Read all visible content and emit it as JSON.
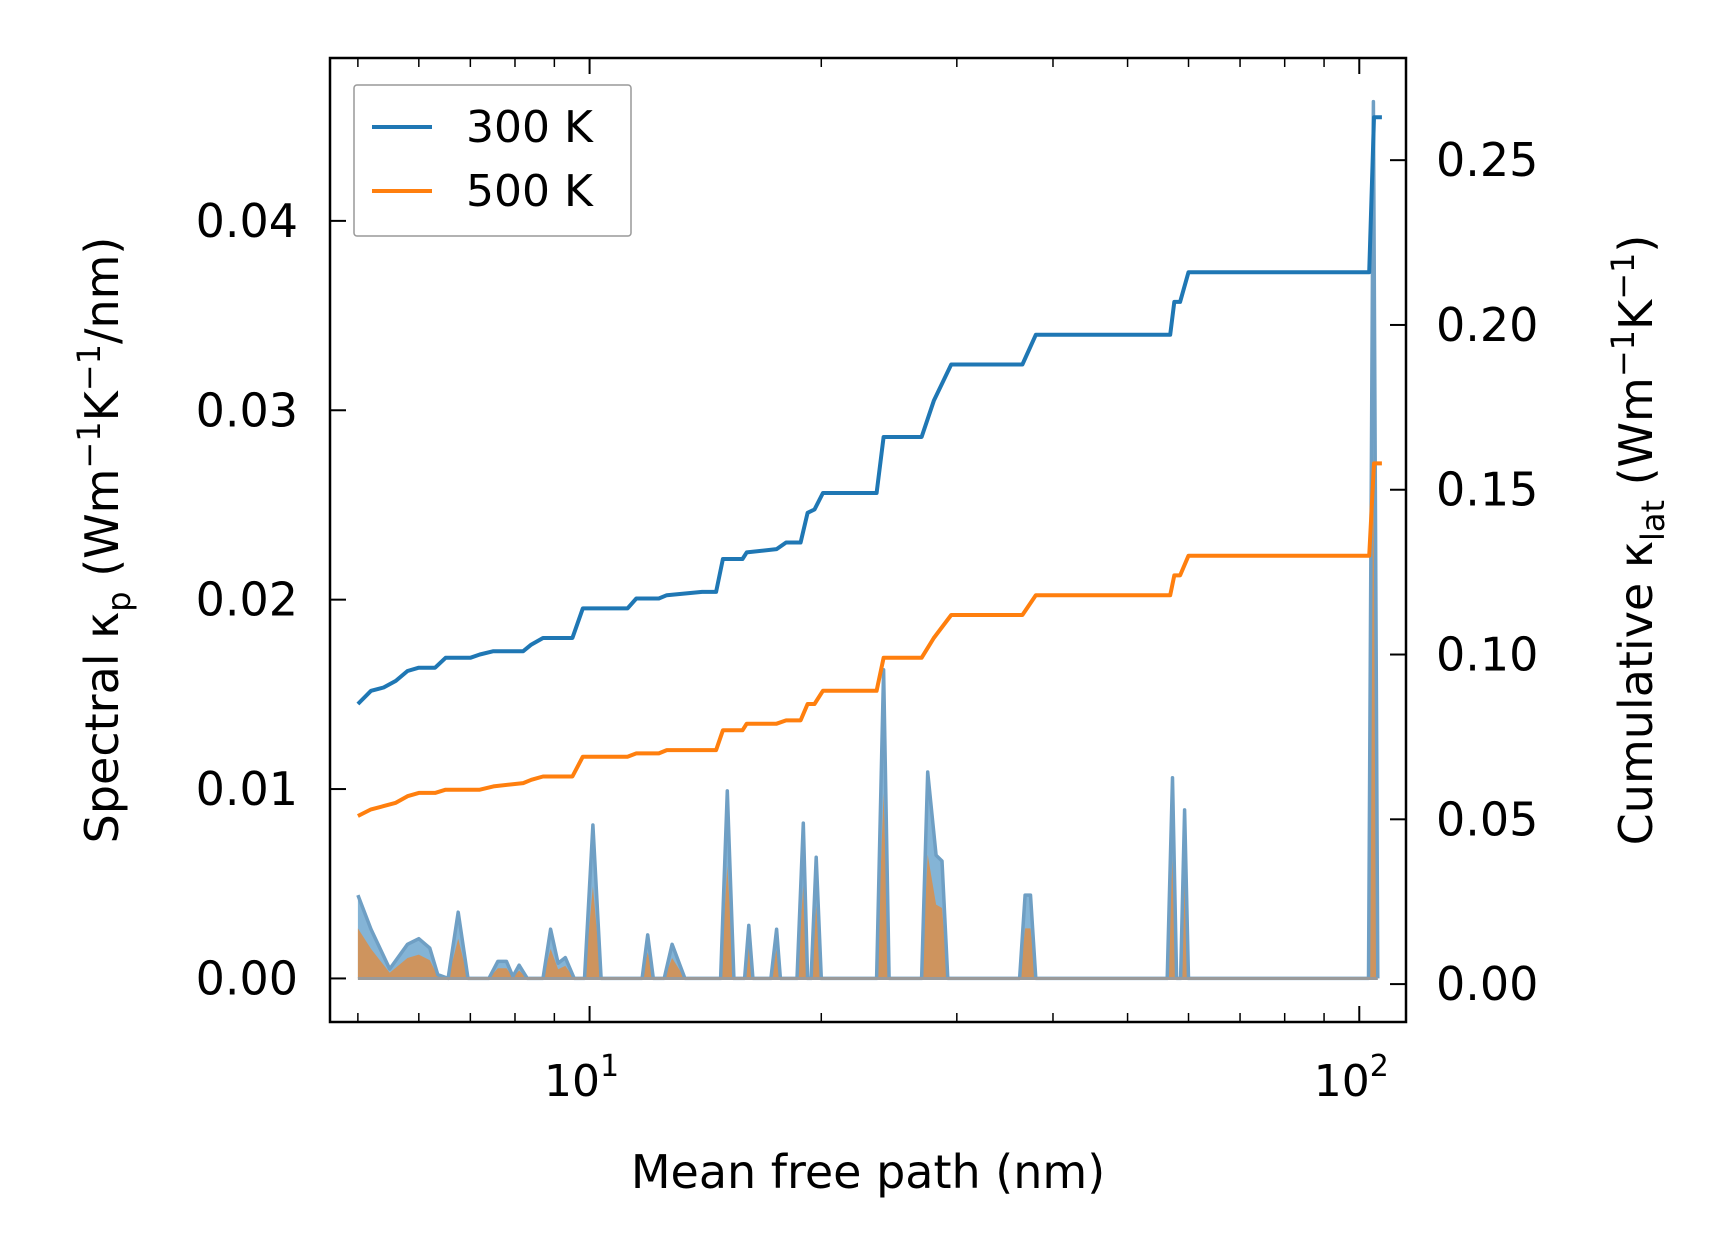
{
  "chart_data": {
    "type": "line+area",
    "xscale": "log",
    "xlabel": "Mean free path (nm)",
    "ylabel_left": {
      "prefix": "Spectral κ",
      "sub": "p",
      "unit_pre": " (Wm",
      "sup1": "−1",
      "mid": "K",
      "sup2": "−1",
      "unit_post": "/nm)"
    },
    "ylabel_right": {
      "prefix": "Cumulative κ",
      "sub": "lat",
      "unit_pre": " (Wm",
      "sup1": "−1",
      "mid": "K",
      "sup2": "−1",
      "unit_post": ")"
    },
    "xlim": [
      4.6,
      115
    ],
    "ylim_left": [
      -0.0023,
      0.0486
    ],
    "ylim_right": [
      -0.0115,
      0.281
    ],
    "xticks": [
      {
        "value": 10,
        "base": "10",
        "exp": "1"
      },
      {
        "value": 100,
        "base": "10",
        "exp": "2"
      }
    ],
    "yticks_left": [
      "0.00",
      "0.01",
      "0.02",
      "0.03",
      "0.04"
    ],
    "yticks_right": [
      "0.00",
      "0.05",
      "0.10",
      "0.15",
      "0.20",
      "0.25"
    ],
    "legend_position": "upper-left",
    "series": [
      {
        "name": "300 K",
        "color": "#1f77b4",
        "cumulative": [
          [
            5.0,
            0.085
          ],
          [
            5.2,
            0.089
          ],
          [
            5.4,
            0.09
          ],
          [
            5.6,
            0.092
          ],
          [
            5.8,
            0.095
          ],
          [
            6.0,
            0.096
          ],
          [
            6.3,
            0.096
          ],
          [
            6.5,
            0.099
          ],
          [
            6.8,
            0.099
          ],
          [
            7.0,
            0.099
          ],
          [
            7.2,
            0.1
          ],
          [
            7.5,
            0.101
          ],
          [
            8.2,
            0.101
          ],
          [
            8.4,
            0.103
          ],
          [
            8.7,
            0.105
          ],
          [
            9.5,
            0.105
          ],
          [
            9.8,
            0.114
          ],
          [
            11.2,
            0.114
          ],
          [
            11.5,
            0.117
          ],
          [
            12.3,
            0.117
          ],
          [
            12.6,
            0.118
          ],
          [
            14.0,
            0.119
          ],
          [
            14.6,
            0.119
          ],
          [
            14.9,
            0.129
          ],
          [
            15.8,
            0.129
          ],
          [
            16.0,
            0.131
          ],
          [
            17.5,
            0.132
          ],
          [
            18.0,
            0.134
          ],
          [
            18.8,
            0.134
          ],
          [
            19.2,
            0.143
          ],
          [
            19.6,
            0.144
          ],
          [
            20.1,
            0.149
          ],
          [
            23.6,
            0.149
          ],
          [
            24.1,
            0.166
          ],
          [
            27.0,
            0.166
          ],
          [
            28.0,
            0.177
          ],
          [
            29.5,
            0.188
          ],
          [
            36.5,
            0.188
          ],
          [
            38.0,
            0.197
          ],
          [
            56.8,
            0.197
          ],
          [
            57.5,
            0.207
          ],
          [
            58.5,
            0.207
          ],
          [
            60.0,
            0.216
          ],
          [
            103.0,
            0.216
          ],
          [
            104.5,
            0.263
          ],
          [
            107.0,
            0.263
          ]
        ],
        "spectral": [
          [
            5.0,
            0.0044
          ],
          [
            5.2,
            0.0026
          ],
          [
            5.5,
            0.0005
          ],
          [
            5.8,
            0.0018
          ],
          [
            6.0,
            0.0021
          ],
          [
            6.2,
            0.0016
          ],
          [
            6.35,
            0.0002
          ],
          [
            6.55,
            0.0
          ],
          [
            6.75,
            0.0035
          ],
          [
            6.95,
            0.0
          ],
          [
            7.4,
            0.0
          ],
          [
            7.6,
            0.0009
          ],
          [
            7.8,
            0.0009
          ],
          [
            7.95,
            0.0001
          ],
          [
            8.1,
            0.0007
          ],
          [
            8.3,
            0.0
          ],
          [
            8.7,
            0.0
          ],
          [
            8.9,
            0.0026
          ],
          [
            9.1,
            0.0008
          ],
          [
            9.3,
            0.0011
          ],
          [
            9.55,
            0.0
          ],
          [
            9.85,
            0.0
          ],
          [
            10.1,
            0.0081
          ],
          [
            10.35,
            0.0
          ],
          [
            11.7,
            0.0
          ],
          [
            11.9,
            0.0023
          ],
          [
            12.1,
            0.0
          ],
          [
            12.5,
            0.0
          ],
          [
            12.8,
            0.0018
          ],
          [
            13.3,
            0.0
          ],
          [
            14.8,
            0.0
          ],
          [
            15.1,
            0.0099
          ],
          [
            15.4,
            0.0
          ],
          [
            15.9,
            0.0
          ],
          [
            16.1,
            0.0028
          ],
          [
            16.3,
            0.0
          ],
          [
            17.2,
            0.0
          ],
          [
            17.5,
            0.0026
          ],
          [
            17.7,
            0.0
          ],
          [
            18.6,
            0.0
          ],
          [
            18.95,
            0.0082
          ],
          [
            19.2,
            0.0
          ],
          [
            19.4,
            0.0
          ],
          [
            19.7,
            0.0064
          ],
          [
            20.0,
            0.0
          ],
          [
            23.6,
            0.0
          ],
          [
            24.1,
            0.0163
          ],
          [
            24.5,
            0.0
          ],
          [
            27.0,
            0.0
          ],
          [
            27.5,
            0.0109
          ],
          [
            28.2,
            0.0065
          ],
          [
            28.7,
            0.0062
          ],
          [
            29.2,
            0.0
          ],
          [
            36.2,
            0.0
          ],
          [
            36.8,
            0.0044
          ],
          [
            37.4,
            0.0044
          ],
          [
            38.0,
            0.0
          ],
          [
            56.3,
            0.0
          ],
          [
            57.2,
            0.0106
          ],
          [
            57.9,
            0.0
          ],
          [
            58.6,
            0.0
          ],
          [
            59.3,
            0.0089
          ],
          [
            60.0,
            0.0
          ],
          [
            102.8,
            0.0
          ],
          [
            104.3,
            0.0463
          ],
          [
            105.7,
            0.0
          ]
        ]
      },
      {
        "name": "500 K",
        "color": "#ff7f0e",
        "cumulative": [
          [
            5.0,
            0.051
          ],
          [
            5.2,
            0.053
          ],
          [
            5.4,
            0.054
          ],
          [
            5.6,
            0.055
          ],
          [
            5.8,
            0.057
          ],
          [
            6.0,
            0.058
          ],
          [
            6.3,
            0.058
          ],
          [
            6.5,
            0.059
          ],
          [
            7.2,
            0.059
          ],
          [
            7.5,
            0.06
          ],
          [
            8.2,
            0.061
          ],
          [
            8.4,
            0.062
          ],
          [
            8.7,
            0.063
          ],
          [
            9.5,
            0.063
          ],
          [
            9.8,
            0.069
          ],
          [
            11.2,
            0.069
          ],
          [
            11.5,
            0.07
          ],
          [
            12.3,
            0.07
          ],
          [
            12.6,
            0.071
          ],
          [
            14.6,
            0.071
          ],
          [
            14.9,
            0.077
          ],
          [
            15.8,
            0.077
          ],
          [
            16.0,
            0.079
          ],
          [
            17.5,
            0.079
          ],
          [
            18.0,
            0.08
          ],
          [
            18.8,
            0.08
          ],
          [
            19.2,
            0.085
          ],
          [
            19.6,
            0.085
          ],
          [
            20.1,
            0.089
          ],
          [
            23.6,
            0.089
          ],
          [
            24.1,
            0.099
          ],
          [
            27.0,
            0.099
          ],
          [
            28.0,
            0.105
          ],
          [
            29.5,
            0.112
          ],
          [
            36.5,
            0.112
          ],
          [
            38.0,
            0.118
          ],
          [
            56.8,
            0.118
          ],
          [
            57.5,
            0.124
          ],
          [
            58.5,
            0.124
          ],
          [
            60.0,
            0.13
          ],
          [
            103.0,
            0.13
          ],
          [
            104.5,
            0.158
          ],
          [
            107.0,
            0.158
          ]
        ]
      }
    ],
    "spectral_500_scale": 0.6
  }
}
